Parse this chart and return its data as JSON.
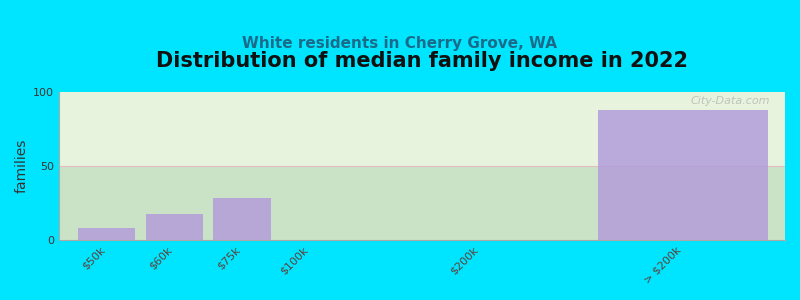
{
  "title": "Distribution of median family income in 2022",
  "subtitle": "White residents in Cherry Grove, WA",
  "ylabel": "families",
  "categories": [
    "$50k",
    "$60k",
    "$75k",
    "$100k",
    "$200k",
    "> $200k"
  ],
  "values": [
    8,
    17,
    28,
    0,
    0,
    88
  ],
  "bar_color": "#b39ddb",
  "bar_color_alpha": 0.85,
  "background_color": "#00e5ff",
  "plot_bg_color": "#e8f5e0",
  "ylim": [
    0,
    100
  ],
  "yticks": [
    0,
    50,
    100
  ],
  "grid_color": "#e8b4c0",
  "grid_alpha": 0.8,
  "watermark": "City-Data.com",
  "title_fontsize": 15,
  "subtitle_fontsize": 11,
  "ylabel_fontsize": 10,
  "tick_fontsize": 8,
  "x_positions": [
    1,
    2,
    3,
    4,
    6.5,
    9.5
  ],
  "bar_widths": [
    0.85,
    0.85,
    0.85,
    0.85,
    0.85,
    2.5
  ]
}
